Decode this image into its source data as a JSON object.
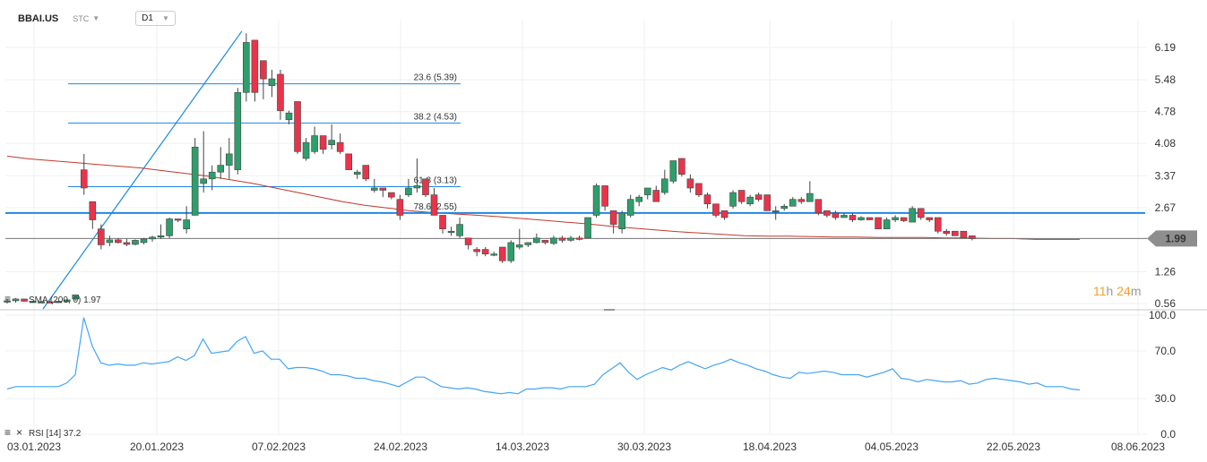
{
  "header": {
    "symbol": "BBAI.US",
    "asset_type": "STC",
    "timeframe": "D1"
  },
  "countdown": {
    "hours": "11",
    "h_unit": "h",
    "minutes": "24",
    "m_unit": "m"
  },
  "colors": {
    "up": "#2e9e6a",
    "down": "#e8344a",
    "sma": "#c0392b",
    "fib": "#1e88e5",
    "rsi": "#42a5f5",
    "price_badge": "#8e8e8e"
  },
  "chart_data": [
    {
      "type": "candlestick",
      "title": "BBAI.US",
      "x_tick_labels": [
        "03.01.2023",
        "20.01.2023",
        "07.02.2023",
        "24.02.2023",
        "14.03.2023",
        "30.03.2023",
        "18.04.2023",
        "04.05.2023",
        "22.05.2023",
        "08.06.2023"
      ],
      "y_tick_labels": [
        "6.19",
        "5.48",
        "4.78",
        "4.08",
        "3.37",
        "2.67",
        "1.99",
        "1.26",
        "0.56"
      ],
      "ylim": [
        0.56,
        6.5
      ],
      "last_price": "1.99",
      "horizontal_line": 2.55,
      "indicator_label": "SMA (200, 0) 1.97",
      "fibonacci": [
        {
          "label": "23.6 (5.39)",
          "value": 5.39
        },
        {
          "label": "38.2 (4.53)",
          "value": 4.53
        },
        {
          "label": "61.8 (3.13)",
          "value": 3.13
        },
        {
          "label": "78.6 (2.55)",
          "value": 2.55
        }
      ],
      "ohlc": [
        [
          0.62,
          0.66,
          0.56,
          0.62
        ],
        [
          0.62,
          0.68,
          0.58,
          0.66
        ],
        [
          0.66,
          0.66,
          0.6,
          0.61
        ],
        [
          0.6,
          0.62,
          0.58,
          0.61
        ],
        [
          0.6,
          0.62,
          0.57,
          0.6
        ],
        [
          0.6,
          0.62,
          0.58,
          0.59
        ],
        [
          0.6,
          0.62,
          0.57,
          0.61
        ],
        [
          0.6,
          0.66,
          0.58,
          0.64
        ],
        [
          0.66,
          0.76,
          0.62,
          0.75
        ],
        [
          3.5,
          3.85,
          2.95,
          3.1
        ],
        [
          2.8,
          2.8,
          2.2,
          2.4
        ],
        [
          2.2,
          2.3,
          1.75,
          1.85
        ],
        [
          1.9,
          2.05,
          1.82,
          1.96
        ],
        [
          1.96,
          2.0,
          1.88,
          1.9
        ],
        [
          1.9,
          1.98,
          1.82,
          1.86
        ],
        [
          1.86,
          1.97,
          1.84,
          1.95
        ],
        [
          1.9,
          2.0,
          1.86,
          1.98
        ],
        [
          1.98,
          2.05,
          1.92,
          2.02
        ],
        [
          2.02,
          2.3,
          1.98,
          2.05
        ],
        [
          2.05,
          2.45,
          2.0,
          2.42
        ],
        [
          2.42,
          2.42,
          2.35,
          2.4
        ],
        [
          2.2,
          2.7,
          2.1,
          2.4
        ],
        [
          2.5,
          4.2,
          2.5,
          4.0
        ],
        [
          3.2,
          4.35,
          3.0,
          3.3
        ],
        [
          3.3,
          3.6,
          3.05,
          3.45
        ],
        [
          3.45,
          4.0,
          3.3,
          3.6
        ],
        [
          3.6,
          4.2,
          3.3,
          3.85
        ],
        [
          3.5,
          5.3,
          3.4,
          5.2
        ],
        [
          5.2,
          6.5,
          5.0,
          6.3
        ],
        [
          6.35,
          6.35,
          5.0,
          5.2
        ],
        [
          5.9,
          5.9,
          5.05,
          5.5
        ],
        [
          5.35,
          5.7,
          5.1,
          5.5
        ],
        [
          5.6,
          5.7,
          4.6,
          4.8
        ],
        [
          4.6,
          4.8,
          4.5,
          4.75
        ],
        [
          5.0,
          5.0,
          3.85,
          3.9
        ],
        [
          3.75,
          4.2,
          3.7,
          4.1
        ],
        [
          3.9,
          4.45,
          3.85,
          4.25
        ],
        [
          4.25,
          4.25,
          3.85,
          3.95
        ],
        [
          4.05,
          4.5,
          3.95,
          4.15
        ],
        [
          4.1,
          4.3,
          3.85,
          3.9
        ],
        [
          3.85,
          3.85,
          3.5,
          3.5
        ],
        [
          3.4,
          3.5,
          3.3,
          3.45
        ],
        [
          3.6,
          3.6,
          3.25,
          3.3
        ],
        [
          3.05,
          3.3,
          3.0,
          3.1
        ],
        [
          3.1,
          3.1,
          2.9,
          3.05
        ],
        [
          3.0,
          3.0,
          2.85,
          2.9
        ],
        [
          2.85,
          2.95,
          2.4,
          2.5
        ],
        [
          2.95,
          3.3,
          2.9,
          3.1
        ],
        [
          3.1,
          3.75,
          3.0,
          3.15
        ],
        [
          3.3,
          3.3,
          2.9,
          2.95
        ],
        [
          2.95,
          3.1,
          2.5,
          2.5
        ],
        [
          2.5,
          2.5,
          2.1,
          2.2
        ],
        [
          2.15,
          2.25,
          2.05,
          2.15
        ],
        [
          2.05,
          2.45,
          2.0,
          2.3
        ],
        [
          2.0,
          2.0,
          1.75,
          1.85
        ],
        [
          1.75,
          1.8,
          1.6,
          1.7
        ],
        [
          1.75,
          1.8,
          1.6,
          1.65
        ],
        [
          1.65,
          1.7,
          1.6,
          1.65
        ],
        [
          1.8,
          1.8,
          1.45,
          1.5
        ],
        [
          1.5,
          1.95,
          1.45,
          1.9
        ],
        [
          1.8,
          2.2,
          1.75,
          1.85
        ],
        [
          1.85,
          1.9,
          1.8,
          1.9
        ],
        [
          1.9,
          2.1,
          1.88,
          2.0
        ],
        [
          1.95,
          1.95,
          1.86,
          1.9
        ],
        [
          1.88,
          2.05,
          1.85,
          2.0
        ],
        [
          2.0,
          2.05,
          1.9,
          1.95
        ],
        [
          1.95,
          2.05,
          1.92,
          2.0
        ],
        [
          2.0,
          2.05,
          1.95,
          1.97
        ],
        [
          2.0,
          2.45,
          2.0,
          2.45
        ],
        [
          2.5,
          3.2,
          2.45,
          3.15
        ],
        [
          3.15,
          3.15,
          2.6,
          2.7
        ],
        [
          2.6,
          2.6,
          2.1,
          2.3
        ],
        [
          2.2,
          2.6,
          2.1,
          2.55
        ],
        [
          2.5,
          2.95,
          2.45,
          2.85
        ],
        [
          2.8,
          2.95,
          2.7,
          2.9
        ],
        [
          2.95,
          3.05,
          2.85,
          3.1
        ],
        [
          3.05,
          3.15,
          2.8,
          2.8
        ],
        [
          3.0,
          3.5,
          2.95,
          3.3
        ],
        [
          3.25,
          3.7,
          3.2,
          3.7
        ],
        [
          3.75,
          3.75,
          3.35,
          3.4
        ],
        [
          3.3,
          3.4,
          3.0,
          3.1
        ],
        [
          3.2,
          3.2,
          2.9,
          2.95
        ],
        [
          2.95,
          3.0,
          2.65,
          2.75
        ],
        [
          2.75,
          2.75,
          2.45,
          2.5
        ],
        [
          2.6,
          2.6,
          2.4,
          2.45
        ],
        [
          2.7,
          3.05,
          2.65,
          3.0
        ],
        [
          3.05,
          3.05,
          2.75,
          2.8
        ],
        [
          2.75,
          2.95,
          2.7,
          2.9
        ],
        [
          2.95,
          3.0,
          2.8,
          2.85
        ],
        [
          2.95,
          2.95,
          2.6,
          2.6
        ],
        [
          2.6,
          2.7,
          2.4,
          2.6
        ],
        [
          2.65,
          2.75,
          2.6,
          2.7
        ],
        [
          2.7,
          2.9,
          2.7,
          2.85
        ],
        [
          2.85,
          2.9,
          2.75,
          2.8
        ],
        [
          2.8,
          3.25,
          2.8,
          2.98
        ],
        [
          2.85,
          2.85,
          2.5,
          2.55
        ],
        [
          2.6,
          2.6,
          2.45,
          2.5
        ],
        [
          2.55,
          2.6,
          2.4,
          2.45
        ],
        [
          2.45,
          2.55,
          2.45,
          2.5
        ],
        [
          2.5,
          2.55,
          2.35,
          2.4
        ],
        [
          2.4,
          2.48,
          2.38,
          2.45
        ],
        [
          2.45,
          2.45,
          2.4,
          2.4
        ],
        [
          2.45,
          2.45,
          2.2,
          2.2
        ],
        [
          2.2,
          2.45,
          2.2,
          2.4
        ],
        [
          2.4,
          2.5,
          2.35,
          2.45
        ],
        [
          2.45,
          2.45,
          2.35,
          2.38
        ],
        [
          2.35,
          2.7,
          2.35,
          2.65
        ],
        [
          2.65,
          2.65,
          2.4,
          2.45
        ],
        [
          2.45,
          2.45,
          2.35,
          2.4
        ],
        [
          2.45,
          2.45,
          2.1,
          2.15
        ],
        [
          2.15,
          2.2,
          2.05,
          2.1
        ],
        [
          2.15,
          2.15,
          2.05,
          2.05
        ],
        [
          2.15,
          2.15,
          1.99,
          2.0
        ],
        [
          2.05,
          2.05,
          1.95,
          1.99
        ]
      ],
      "sma": [
        3.8,
        3.74,
        3.7,
        3.66,
        3.62,
        3.58,
        3.54,
        3.48,
        3.42,
        3.36,
        3.28,
        3.2,
        3.1,
        3.0,
        2.9,
        2.8,
        2.72,
        2.66,
        2.6,
        2.56,
        2.53,
        2.5,
        2.47,
        2.43,
        2.39,
        2.35,
        2.31,
        2.26,
        2.22,
        2.18,
        2.14,
        2.11,
        2.08,
        2.05,
        2.04,
        2.04,
        2.03,
        2.02,
        2.02,
        2.01,
        2.01,
        2.01,
        2.0,
        2.0,
        1.99,
        1.99,
        1.97,
        1.97,
        1.97
      ]
    },
    {
      "type": "line",
      "title": "RSI",
      "indicator_label": "RSI [14] 37.2",
      "y_tick_labels": [
        "100.0",
        "70.0",
        "30.0",
        "0.0"
      ],
      "ylim": [
        0,
        100
      ],
      "values": [
        38,
        40,
        40,
        40,
        40,
        40,
        40,
        43,
        50,
        98,
        74,
        60,
        58,
        59,
        58,
        58,
        60,
        59,
        60,
        61,
        65,
        62,
        66,
        80,
        68,
        69,
        70,
        78,
        82,
        68,
        70,
        63,
        63,
        55,
        56,
        56,
        55,
        53,
        50,
        50,
        49,
        47,
        47,
        45,
        44,
        42,
        40,
        44,
        48,
        48,
        44,
        40,
        39,
        38,
        39,
        38,
        36,
        35,
        34,
        35,
        34,
        38,
        38,
        39,
        39,
        38,
        40,
        40,
        40,
        42,
        50,
        55,
        60,
        52,
        46,
        50,
        53,
        56,
        54,
        58,
        61,
        58,
        55,
        58,
        60,
        63,
        60,
        58,
        55,
        53,
        50,
        48,
        47,
        52,
        51,
        52,
        53,
        52,
        50,
        50,
        50,
        48,
        50,
        52,
        55,
        47,
        46,
        44,
        46,
        45,
        44,
        44,
        45,
        42,
        43,
        46,
        47,
        46,
        45,
        44,
        42,
        43,
        40,
        40,
        40,
        38,
        37.2
      ],
      "last_value": 37.2
    }
  ]
}
